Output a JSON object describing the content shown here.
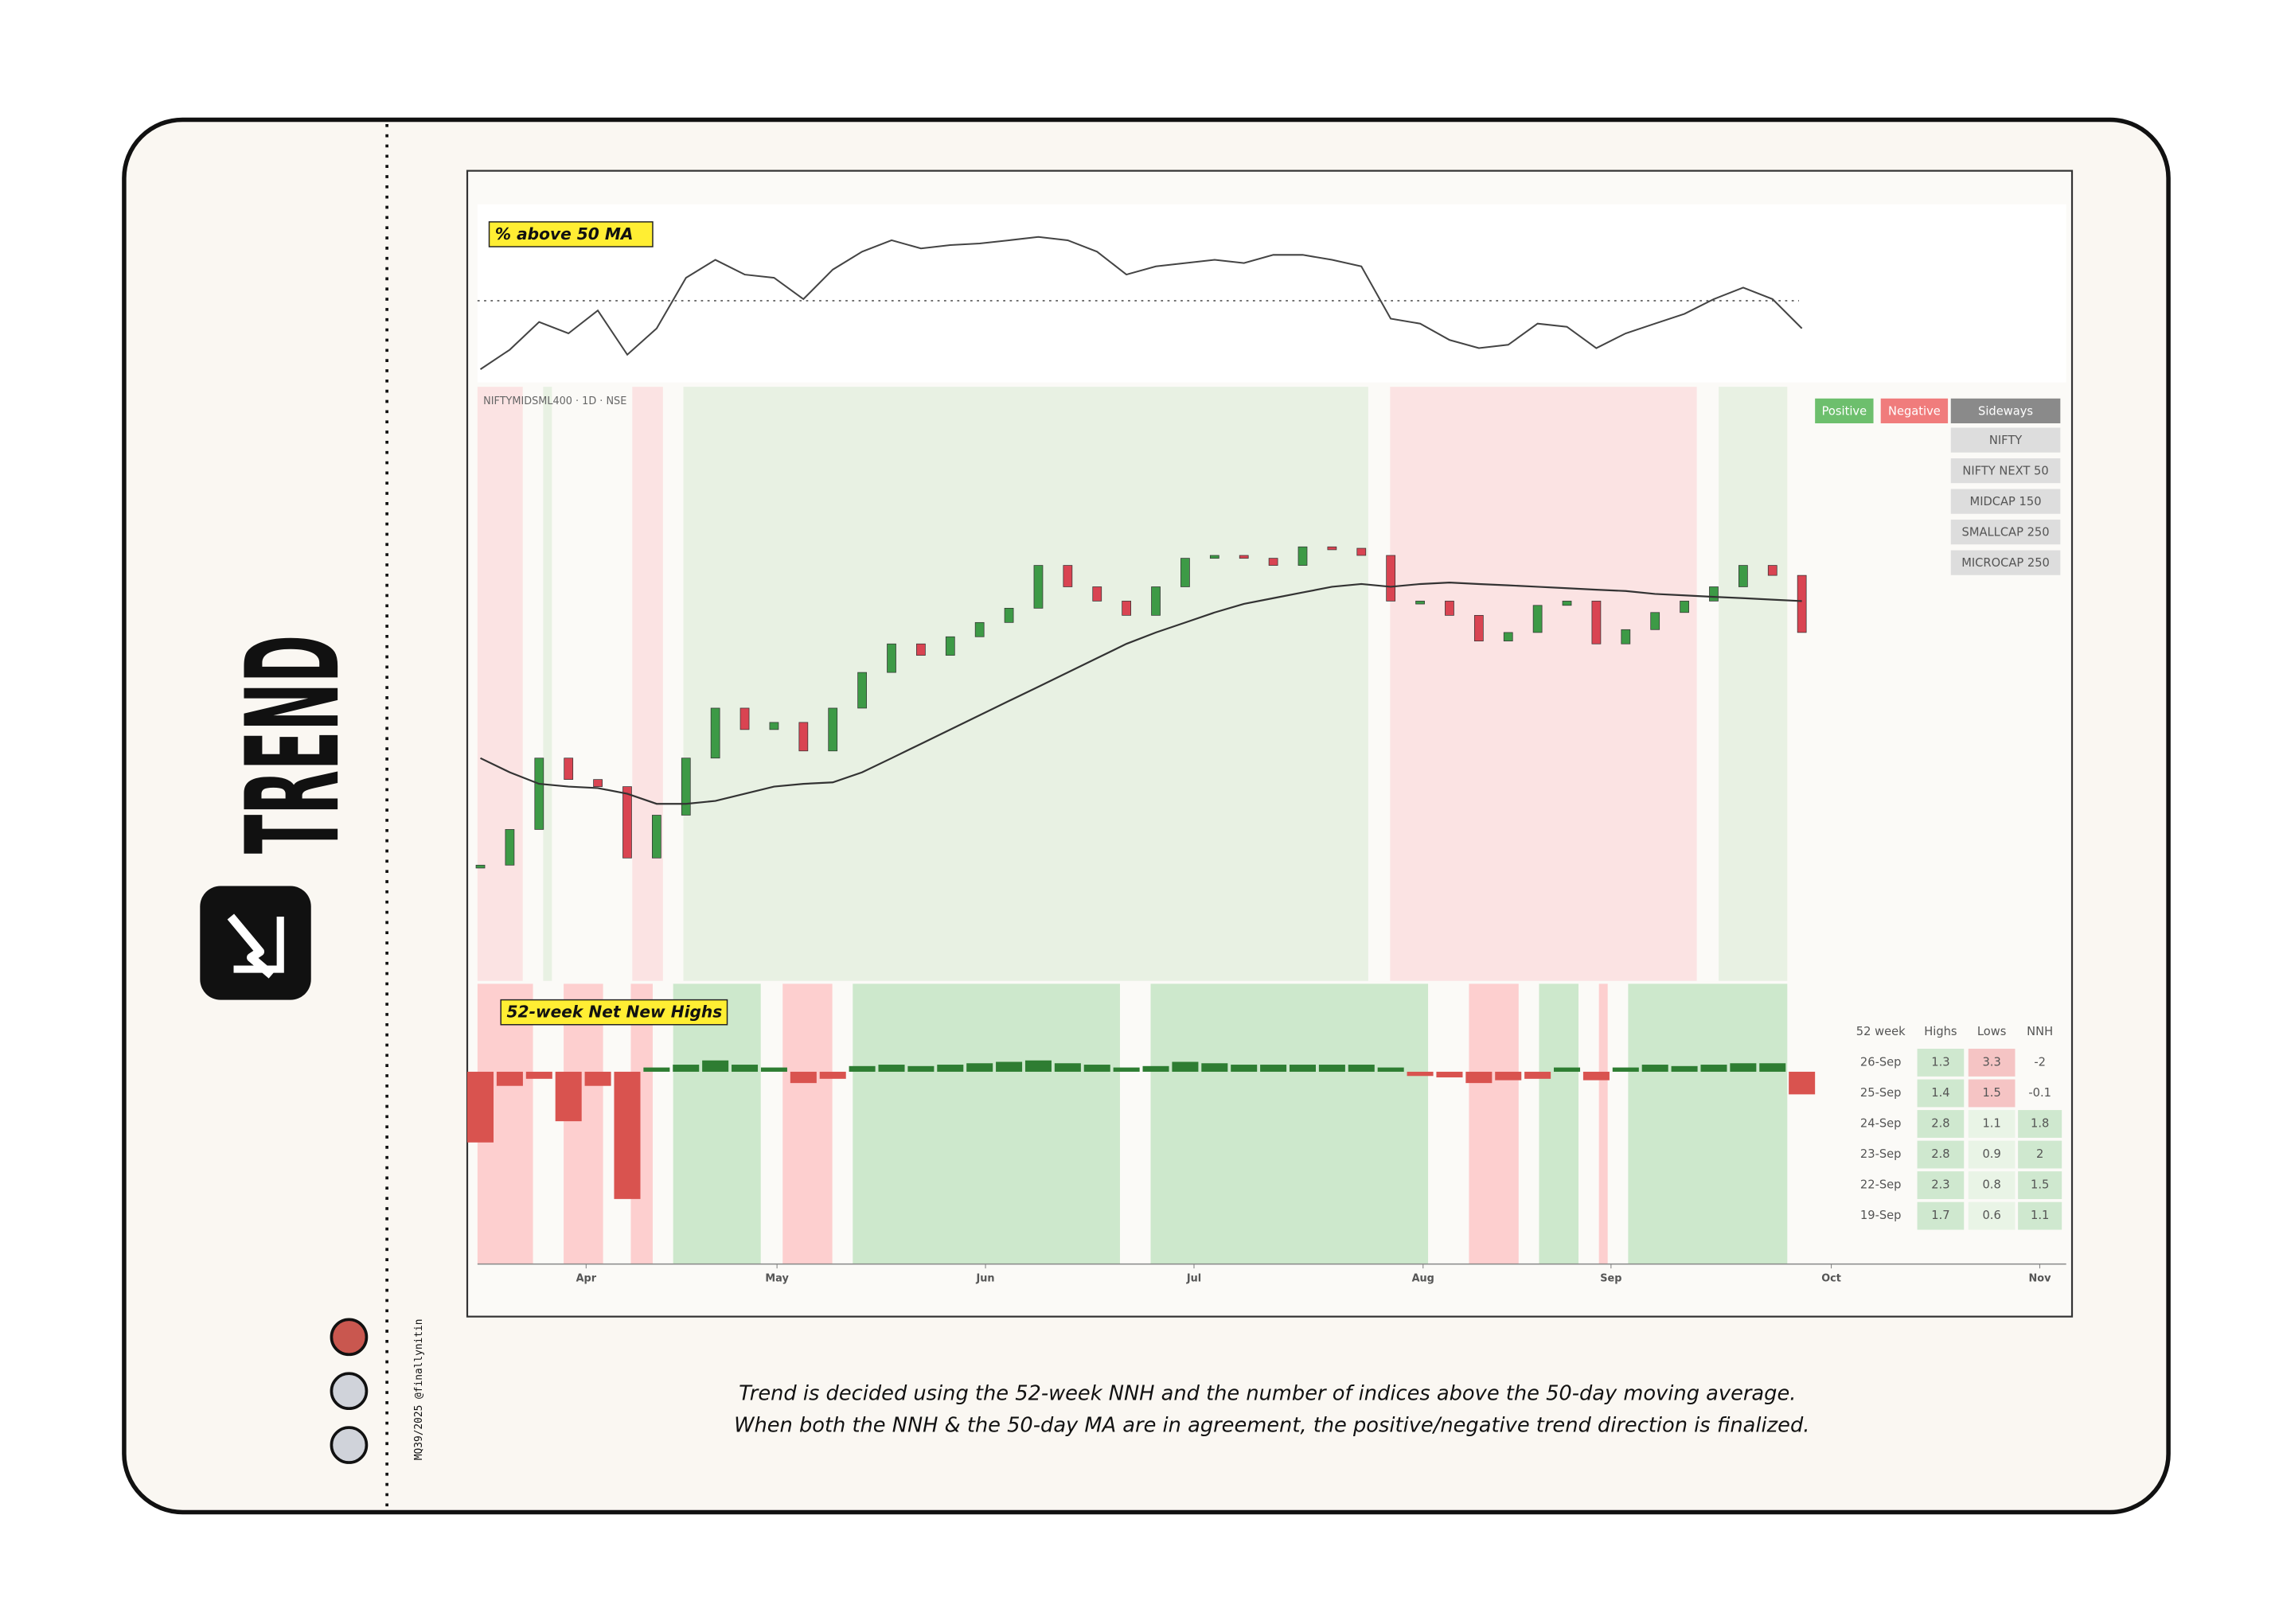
{
  "brand": {
    "title": "TREND",
    "credit": "MQ39/2025 @finallynitin"
  },
  "caption": [
    "Trend is decided using the 52-week NNH and the number of indices above the 50-day moving average.",
    "When both the NNH & the 50-day MA are in agreement, the positive/negative trend direction is finalized."
  ],
  "chart_data": [
    {
      "type": "line",
      "title": "% above 50 MA",
      "color": "#444444",
      "xlim": [
        0,
        54
      ],
      "ylim": [
        0,
        100
      ],
      "reference_line": 50,
      "values": [
        8,
        20,
        37,
        30,
        44,
        17,
        33,
        64,
        75,
        66,
        64,
        51,
        69,
        80,
        87,
        82,
        84,
        85,
        87,
        89,
        87,
        80,
        66,
        71,
        73,
        75,
        73,
        78,
        78,
        75,
        71,
        39,
        36,
        26,
        21,
        23,
        36,
        34,
        21,
        30,
        36,
        42,
        51,
        58,
        51,
        33
      ]
    },
    {
      "type": "line",
      "title": "NIFTYMIDSML400 · 1D · NSE",
      "xlim": [
        0,
        54
      ],
      "ylim": [
        0,
        407
      ],
      "series": [
        {
          "color": "#2e8b3a",
          "values": [
            77,
            102,
            152,
            137,
            132,
            82,
            112,
            152,
            187,
            172,
            177,
            157,
            187,
            212,
            232,
            224,
            237,
            247,
            257,
            287,
            272,
            262,
            252,
            272,
            292,
            294,
            292,
            287,
            300,
            299,
            294,
            262,
            262,
            252,
            234,
            240,
            259,
            262,
            232,
            242,
            254,
            262,
            272,
            287,
            280,
            240
          ]
        },
        {
          "color": "#333333",
          "values": [
            152,
            142,
            134,
            132,
            131,
            127,
            120,
            120,
            122,
            127,
            132,
            134,
            135,
            142,
            152,
            162,
            172,
            182,
            192,
            202,
            212,
            222,
            232,
            240,
            247,
            254,
            260,
            264,
            268,
            272,
            274,
            272,
            274,
            275,
            274,
            273,
            272,
            271,
            270,
            269,
            267,
            266,
            265,
            264,
            263,
            262
          ]
        }
      ],
      "legend": [
        {
          "name": "Positive",
          "color": "#6dbf6d"
        },
        {
          "name": "Negative",
          "color": "#f07c7c"
        },
        {
          "name": "Sideways",
          "color": "#8a8a8a"
        }
      ],
      "indices": [
        "NIFTY",
        "NIFTY NEXT 50",
        "MIDCAP 150",
        "SMALLCAP 250",
        "MICROCAP 250"
      ]
    },
    {
      "type": "bar",
      "title": "52-week Net New Highs",
      "xlim": [
        0,
        54
      ],
      "ylim": [
        -13.6,
        5.6
      ],
      "color_positive": "#2e7d32",
      "color_negative": "#d9534f",
      "values": [
        -5,
        -1,
        -0.5,
        -3.5,
        -1,
        -9,
        0.3,
        0.5,
        0.8,
        0.5,
        0.3,
        -0.8,
        -0.5,
        0.4,
        0.5,
        0.4,
        0.5,
        0.6,
        0.7,
        0.8,
        0.6,
        0.5,
        0.3,
        0.4,
        0.7,
        0.6,
        0.5,
        0.5,
        0.5,
        0.5,
        0.5,
        0.3,
        -0.3,
        -0.4,
        -0.8,
        -0.6,
        -0.5,
        0.3,
        -0.6,
        0.3,
        0.5,
        0.4,
        0.5,
        0.6,
        0.6,
        -1.6
      ],
      "xticks": [
        {
          "value": 3.6,
          "label": "Apr"
        },
        {
          "value": 10.1,
          "label": "May"
        },
        {
          "value": 17.2,
          "label": "Jun"
        },
        {
          "value": 24.3,
          "label": "Jul"
        },
        {
          "value": 32.1,
          "label": "Aug"
        },
        {
          "value": 38.5,
          "label": "Sep"
        },
        {
          "value": 46,
          "label": "Oct"
        },
        {
          "value": 53.1,
          "label": "Nov"
        }
      ]
    }
  ],
  "table": {
    "header": [
      "52 week",
      "Highs",
      "Lows",
      "NNH"
    ],
    "rows": [
      [
        "26-Sep",
        1.3,
        3.3,
        -2
      ],
      [
        "25-Sep",
        1.4,
        1.5,
        -0.1
      ],
      [
        "24-Sep",
        2.8,
        1.1,
        1.8
      ],
      [
        "23-Sep",
        2.8,
        0.9,
        2
      ],
      [
        "22-Sep",
        2.3,
        0.8,
        1.5
      ],
      [
        "19-Sep",
        1.7,
        0.6,
        1.1
      ]
    ]
  }
}
